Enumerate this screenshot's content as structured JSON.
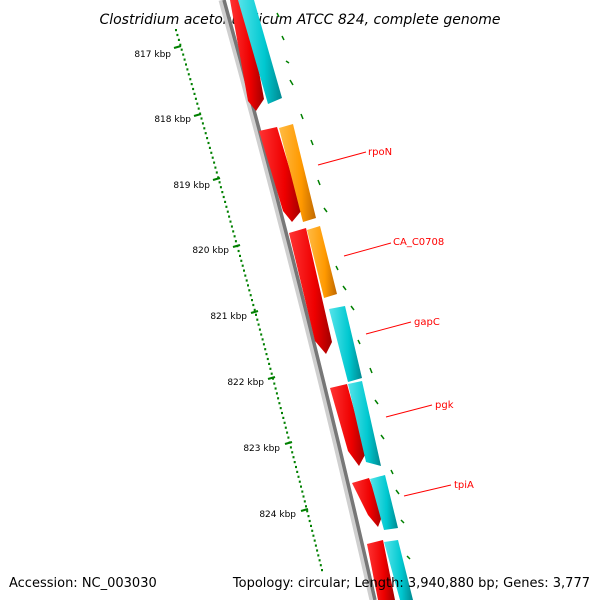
{
  "title": "Clostridium acetobutylicum ATCC 824, complete genome",
  "footer": {
    "accession": "Accession: NC_003030",
    "summary": "Topology: circular; Length: 3,940,880 bp; Genes: 3,777"
  },
  "scale": {
    "unit": "kbp",
    "ticks": [
      "817 kbp",
      "818 kbp",
      "819 kbp",
      "820 kbp",
      "821 kbp",
      "822 kbp",
      "823 kbp",
      "824 kbp"
    ]
  },
  "colors": {
    "cds_strand": "#ff0000",
    "gene_cyan": "#00c8d0",
    "gene_orange": "#ff9900",
    "backbone": "#808080",
    "scale_ticks": "#008000",
    "label": "#ff0000"
  },
  "gene_labels": [
    "rpoN",
    "CA_C0708",
    "gapC",
    "pgk",
    "tpiA"
  ]
}
